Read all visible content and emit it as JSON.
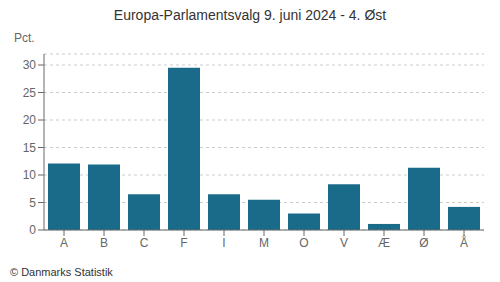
{
  "chart_data": {
    "type": "bar",
    "title": "Europa-Parlamentsvalg 9. juni 2024 - 4. Øst",
    "categories": [
      "A",
      "B",
      "C",
      "F",
      "I",
      "M",
      "O",
      "V",
      "Æ",
      "Ø",
      "Å"
    ],
    "values": [
      12.1,
      11.9,
      6.5,
      29.5,
      6.5,
      5.5,
      3.0,
      8.3,
      1.1,
      11.3,
      4.2
    ],
    "color": "#1a6b8a",
    "ylabel": "Pct.",
    "ylim": [
      0,
      32
    ],
    "yticks": [
      0,
      5,
      10,
      15,
      20,
      25,
      30
    ],
    "grid": true,
    "footer": "© Danmarks Statistik"
  }
}
